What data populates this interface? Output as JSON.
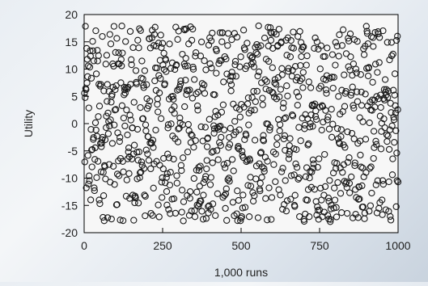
{
  "colors": {
    "marker_stroke": "#1a1a1a",
    "plot_bg": "#f7f7f7",
    "axis": "#000000"
  },
  "chart_data": {
    "type": "scatter",
    "title": "",
    "xlabel": "1,000 runs",
    "ylabel": "Utility",
    "xlim": [
      0,
      1000
    ],
    "ylim": [
      -20,
      20
    ],
    "xticks": [
      0,
      250,
      500,
      750,
      1000
    ],
    "yticks": [
      -20,
      -15,
      -10,
      -5,
      0,
      5,
      10,
      15,
      20
    ],
    "grid": false,
    "legend": "none",
    "marker": "open-circle",
    "point_count": 1000,
    "x_range": [
      1,
      1000
    ],
    "y_range": [
      -18,
      18
    ],
    "notes_series_shape": "dense uniform cloud of hollow circles, roughly evenly spread between -18 and 18 across all x"
  }
}
